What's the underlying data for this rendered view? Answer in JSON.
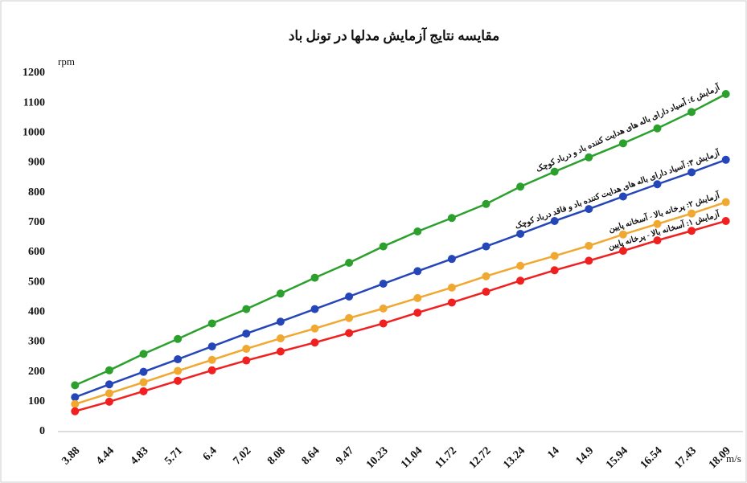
{
  "chart_data": {
    "type": "line",
    "title": "مقایسه نتایج آزمایش مدلها در تونل باد",
    "y_label": "rpm",
    "x_label": "m/s",
    "categories": [
      "3.88",
      "4.44",
      "4.83",
      "5.71",
      "6.4",
      "7.02",
      "8.08",
      "8.64",
      "9.47",
      "10.23",
      "11.04",
      "11.72",
      "12.72",
      "13.24",
      "14",
      "14.9",
      "15.94",
      "16.54",
      "17.43",
      "18.09"
    ],
    "series": [
      {
        "name": "آزمایش ٤: آسیاد دارای باله های هدایت کننده باد و درباد کوچک",
        "color": "#2ca02c",
        "values": [
          155,
          205,
          260,
          310,
          362,
          410,
          462,
          515,
          565,
          620,
          670,
          715,
          762,
          820,
          870,
          918,
          965,
          1015,
          1070,
          1130
        ]
      },
      {
        "name": "آزمایش ۳: آسیاد دارای باله های هدایت کننده باد و فاقد درباد کوچک",
        "color": "#2546b8",
        "values": [
          115,
          158,
          200,
          242,
          285,
          328,
          368,
          410,
          452,
          495,
          537,
          578,
          620,
          662,
          705,
          745,
          787,
          828,
          868,
          910
        ]
      },
      {
        "name": "آزمایش ۲: پرخانه بالا - آسخانه پایین",
        "color": "#f0a830",
        "values": [
          92,
          128,
          165,
          203,
          240,
          277,
          312,
          345,
          380,
          412,
          447,
          482,
          520,
          555,
          588,
          622,
          660,
          695,
          730,
          768
        ]
      },
      {
        "name": "آزمایش ۱: آسخانه بالا - پرخانه پایین",
        "color": "#f02020",
        "values": [
          68,
          100,
          135,
          170,
          205,
          238,
          268,
          298,
          330,
          362,
          398,
          432,
          468,
          505,
          540,
          572,
          605,
          640,
          672,
          705
        ]
      }
    ],
    "ylim": [
      0,
      1200
    ],
    "yticks": [
      0,
      100,
      200,
      300,
      400,
      500,
      600,
      700,
      800,
      900,
      1000,
      1100,
      1200
    ],
    "grid": false
  }
}
